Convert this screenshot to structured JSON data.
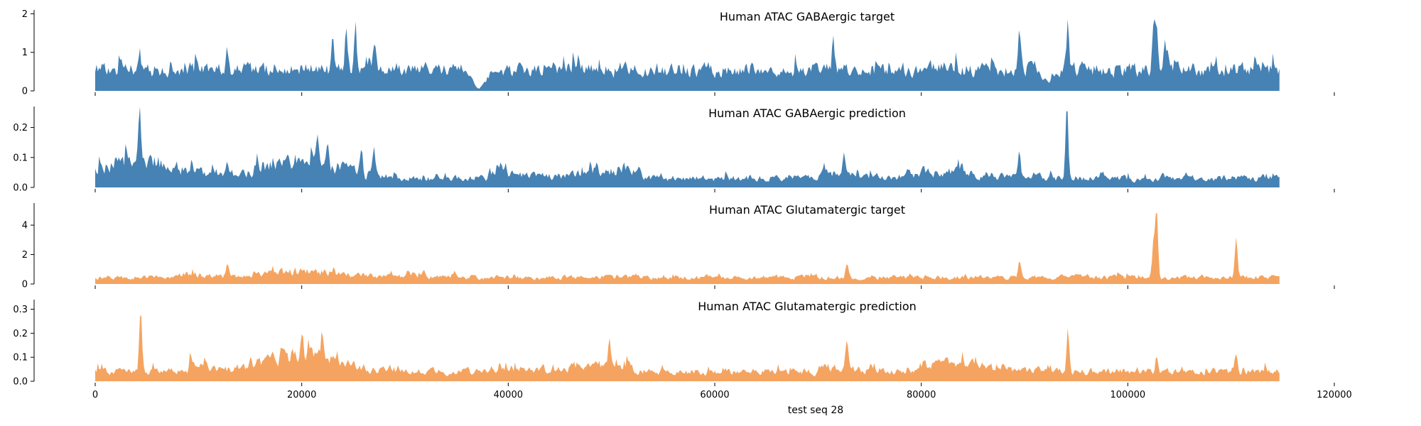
{
  "chart_data": {
    "type": "area",
    "xlabel": "test seq 28",
    "xlim": [
      0,
      120000
    ],
    "x_ticks": [
      "0",
      "20000",
      "40000",
      "60000",
      "80000",
      "100000",
      "120000"
    ],
    "x_tick_values": [
      0,
      20000,
      40000,
      60000,
      80000,
      100000,
      120000
    ],
    "data_x_range": [
      0,
      114688
    ],
    "grid": false,
    "panels": [
      {
        "title": "Human ATAC GABAergic target",
        "color": "#4682b4",
        "ylim": [
          0,
          2.1
        ],
        "y_ticks": [
          "0",
          "1",
          "2"
        ],
        "y_tick_values": [
          0,
          1,
          2
        ],
        "base_level": 0.55,
        "noise": 0.5,
        "peaks": [
          [
            4300,
            0.6
          ],
          [
            12800,
            0.6
          ],
          [
            23000,
            1.0
          ],
          [
            24300,
            1.1
          ],
          [
            25200,
            0.9
          ],
          [
            27000,
            0.8
          ],
          [
            71500,
            0.6
          ],
          [
            89500,
            1.0
          ],
          [
            94200,
            1.3
          ],
          [
            102500,
            1.1
          ],
          [
            102800,
            1.3
          ],
          [
            103600,
            0.6
          ]
        ],
        "valleys": [
          [
            37000,
            0.5
          ],
          [
            92000,
            0.3
          ]
        ]
      },
      {
        "title": "Human ATAC GABAergic prediction",
        "color": "#4682b4",
        "ylim": [
          0,
          0.27
        ],
        "y_ticks": [
          "0.0",
          "0.1",
          "0.2"
        ],
        "y_tick_values": [
          0,
          0.1,
          0.2
        ],
        "base_level": 0.03,
        "noise": 0.5,
        "peaks": [
          [
            4300,
            0.2
          ],
          [
            12800,
            0.05
          ],
          [
            21500,
            0.1
          ],
          [
            22500,
            0.07
          ],
          [
            25800,
            0.09
          ],
          [
            27000,
            0.08
          ],
          [
            72500,
            0.06
          ],
          [
            89500,
            0.1
          ],
          [
            94100,
            0.24
          ]
        ],
        "plateaus": [
          [
            0,
            29000,
            0.06
          ],
          [
            38000,
            53000,
            0.03
          ],
          [
            70000,
            76000,
            0.03
          ],
          [
            79500,
            92000,
            0.02
          ]
        ]
      },
      {
        "title": "Human ATAC Glutamatergic target",
        "color": "#f4a460",
        "ylim": [
          0,
          5.5
        ],
        "y_ticks": [
          "0",
          "2",
          "4"
        ],
        "y_tick_values": [
          0,
          2,
          4
        ],
        "base_level": 0.45,
        "noise": 0.5,
        "peaks": [
          [
            12800,
            0.8
          ],
          [
            72800,
            0.9
          ],
          [
            89500,
            1.0
          ],
          [
            102500,
            2.6
          ],
          [
            102800,
            4.6
          ],
          [
            110500,
            2.6
          ]
        ],
        "plateaus": [
          [
            8000,
            32000,
            0.4
          ]
        ]
      },
      {
        "title": "Human ATAC Glutamatergic prediction",
        "color": "#f4a460",
        "ylim": [
          0,
          0.34
        ],
        "y_ticks": [
          "0.0",
          "0.1",
          "0.2",
          "0.3"
        ],
        "y_tick_values": [
          0,
          0.1,
          0.2,
          0.3
        ],
        "base_level": 0.04,
        "noise": 0.5,
        "peaks": [
          [
            4400,
            0.27
          ],
          [
            20000,
            0.1
          ],
          [
            22000,
            0.12
          ],
          [
            49800,
            0.11
          ],
          [
            72800,
            0.12
          ],
          [
            94200,
            0.18
          ],
          [
            102800,
            0.07
          ],
          [
            110500,
            0.07
          ]
        ],
        "plateaus": [
          [
            9000,
            28000,
            0.06
          ],
          [
            39000,
            52000,
            0.04
          ],
          [
            70000,
            76000,
            0.03
          ],
          [
            79500,
            92000,
            0.03
          ]
        ]
      }
    ]
  }
}
